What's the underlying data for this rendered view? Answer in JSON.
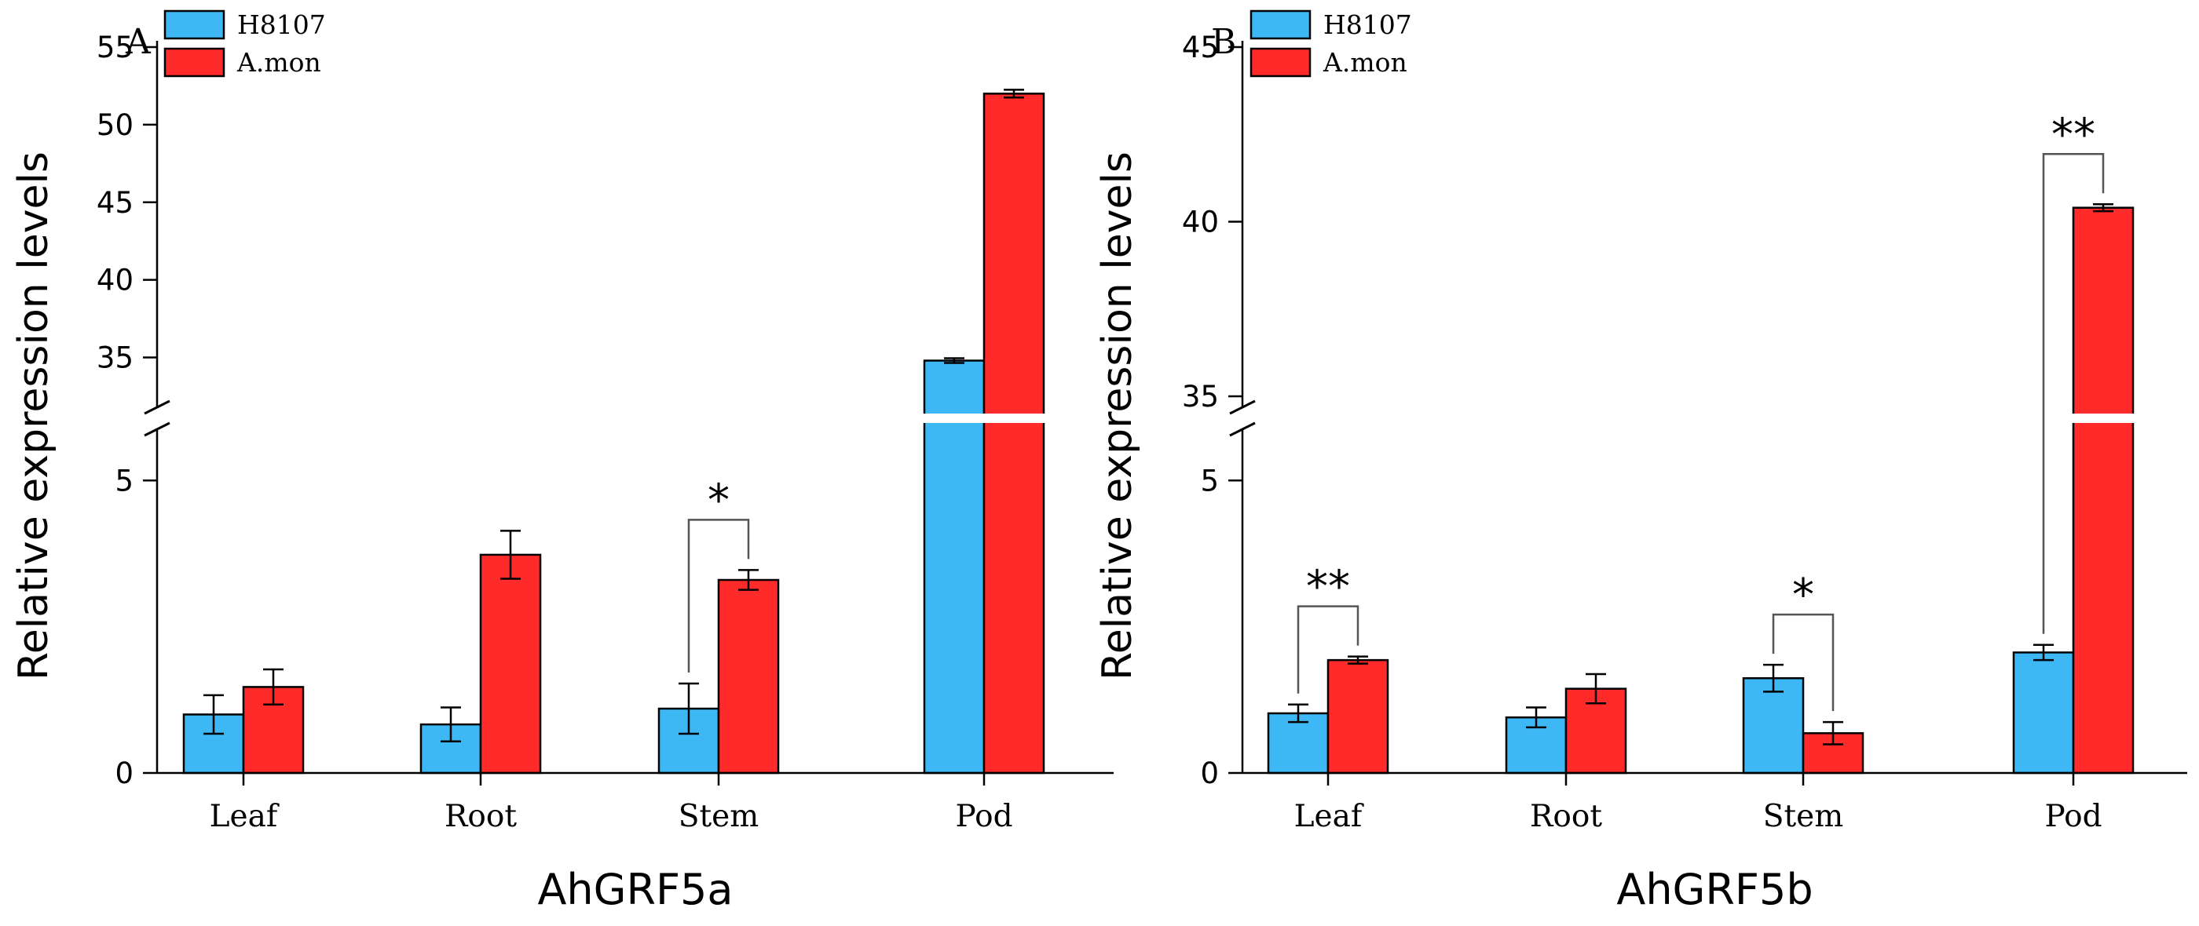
{
  "colors": {
    "H8107": "#3db8f5",
    "A.mon": "#ff2a2a",
    "axis": "#000000"
  },
  "chart_data": [
    {
      "type": "bar",
      "panel_label": "A",
      "title": "AhGRF5a",
      "xlabel": "AhGRF5a",
      "ylabel": "Relative expression levels",
      "categories": [
        "Leaf",
        "Root",
        "Stem",
        "Pod"
      ],
      "series": [
        {
          "name": "H8107",
          "values": [
            1.0,
            0.83,
            1.1,
            34.8
          ],
          "errors": [
            0.33,
            0.29,
            0.43,
            0.15
          ]
        },
        {
          "name": "A.mon",
          "values": [
            1.47,
            3.73,
            3.3,
            52.0
          ],
          "errors": [
            0.3,
            0.41,
            0.17,
            0.25
          ]
        }
      ],
      "y_break": [
        5.5,
        32.5
      ],
      "ylim_lower": [
        0,
        5.5
      ],
      "ylim_upper": [
        32.5,
        55
      ],
      "yticks_lower": [
        0,
        5
      ],
      "yticks_upper": [
        35,
        40,
        45,
        50,
        55
      ],
      "ytick_labels": [
        "0",
        "5",
        "35",
        "40",
        "45",
        "50",
        "55"
      ],
      "significance": [
        {
          "category": "Stem",
          "label": "*"
        }
      ],
      "legend": [
        "H8107",
        "A.mon"
      ],
      "legend_position": "top-left"
    },
    {
      "type": "bar",
      "panel_label": "B",
      "title": "AhGRF5b",
      "xlabel": "AhGRF5b",
      "ylabel": "Relative expression levels",
      "categories": [
        "Leaf",
        "Root",
        "Stem",
        "Pod"
      ],
      "series": [
        {
          "name": "H8107",
          "values": [
            1.02,
            0.95,
            1.62,
            2.06
          ],
          "errors": [
            0.15,
            0.17,
            0.23,
            0.13
          ]
        },
        {
          "name": "A.mon",
          "values": [
            1.93,
            1.44,
            0.68,
            40.4
          ],
          "errors": [
            0.06,
            0.25,
            0.19,
            0.1
          ]
        }
      ],
      "y_break": [
        5.5,
        35
      ],
      "ylim_lower": [
        0,
        5.5
      ],
      "ylim_upper": [
        35,
        45
      ],
      "yticks_lower": [
        0,
        5
      ],
      "yticks_upper": [
        35,
        40,
        45
      ],
      "ytick_labels": [
        "0",
        "5",
        "35",
        "40",
        "45"
      ],
      "significance": [
        {
          "category": "Leaf",
          "label": "**"
        },
        {
          "category": "Stem",
          "label": "*"
        },
        {
          "category": "Pod",
          "label": "**"
        }
      ],
      "legend": [
        "H8107",
        "A.mon"
      ],
      "legend_position": "top-left"
    }
  ]
}
